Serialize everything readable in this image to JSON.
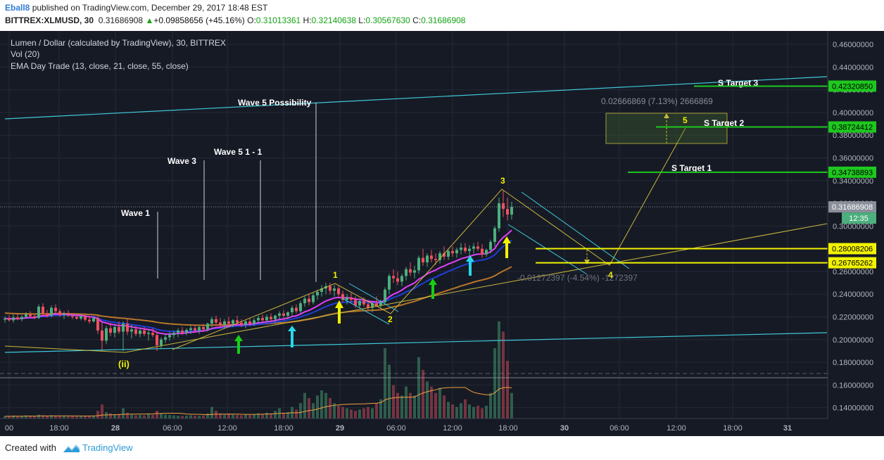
{
  "header": {
    "author": "Eball8",
    "published_text": "published on TradingView.com, December 29, 2017 18:48 EST",
    "symbol": "BITTREX:XLMUSD, 30",
    "price": "0.31686908",
    "up_arrow": "▲",
    "change": "+0.09858656 (+45.16%)",
    "o_label": "O:",
    "o_value": "0.31013361",
    "h_label": "H:",
    "h_value": "0.32140638",
    "l_label": "L:",
    "l_value": "0.30567630",
    "c_label": "C:",
    "c_value": "0.31686908"
  },
  "legend": {
    "line1": "Lumen / Dollar (calculated by TradingView), 30, BITTREX",
    "line2": "Vol (20)",
    "line3": "EMA Day Trade (13, close, 21, close, 55, close)"
  },
  "footer": {
    "created_with": "Created with",
    "brand": "TradingView"
  },
  "colors": {
    "background": "#161a25",
    "grid": "#242936",
    "up_candle": "#4caf7d",
    "down_candle": "#ef5061",
    "ema13": "#e040fb",
    "ema21": "#1e3fd8",
    "ema55": "#b8762a",
    "trend": "#3ec8d8",
    "elliott": "#c8b83a",
    "target_green": "#1ec81e",
    "level_yellow": "#f2f200"
  },
  "chart_data": {
    "type": "candlestick",
    "title": "Lumen / Dollar (calculated by TradingView), 30, BITTREX",
    "x_ticks": [
      "00",
      "18:00",
      "28",
      "06:00",
      "12:00",
      "18:00",
      "29",
      "06:00",
      "12:00",
      "18:00",
      "30",
      "06:00",
      "12:00",
      "18:00",
      "31"
    ],
    "y_ticks": [
      "0.14000000",
      "0.16000000",
      "0.18000000",
      "0.20000000",
      "0.22000000",
      "0.24000000",
      "0.26000000",
      "0.28000000",
      "0.30000000",
      "0.32000000",
      "0.34000000",
      "0.36000000",
      "0.38000000",
      "0.40000000",
      "0.42000000",
      "0.44000000",
      "0.46000000"
    ],
    "ylim": [
      0.1305,
      0.4718
    ],
    "last_price": 0.31686908,
    "countdown": "12:35",
    "price_labels": [
      {
        "value": 0.4232085,
        "text": "0.42320850",
        "kind": "green"
      },
      {
        "value": 0.38724412,
        "text": "0.38724412",
        "kind": "green"
      },
      {
        "value": 0.34738893,
        "text": "0.34738893",
        "kind": "green"
      },
      {
        "value": 0.31686908,
        "text": "0.31686908",
        "kind": "gray"
      },
      {
        "value": 0.28008206,
        "text": "0.28008206",
        "kind": "yellow"
      },
      {
        "value": 0.26765262,
        "text": "0.26765262",
        "kind": "yellow"
      }
    ],
    "targets": [
      {
        "label": "S Target 3",
        "value": 0.4232085
      },
      {
        "label": "S Target 2",
        "value": 0.38724412
      },
      {
        "label": "S Target 1",
        "value": 0.34738893
      }
    ],
    "wave_annotations": [
      "Wave 1",
      "Wave 3",
      "Wave 5 1 - 1",
      "Wave 5 Possibility"
    ],
    "elliott_labels": [
      "1",
      "2",
      "3",
      "4",
      "5",
      "(ii)"
    ],
    "measure_up": "0.02666869 (7.13%) 2666869",
    "measure_down": "-0.01272397 (-4.54%) -1272397",
    "candles": [
      {
        "t": 0,
        "o": 0.2175,
        "h": 0.2205,
        "l": 0.215,
        "c": 0.2185
      },
      {
        "t": 1,
        "o": 0.2185,
        "h": 0.2215,
        "l": 0.216,
        "c": 0.217
      },
      {
        "t": 2,
        "o": 0.217,
        "h": 0.222,
        "l": 0.215,
        "c": 0.2195
      },
      {
        "t": 3,
        "o": 0.2195,
        "h": 0.223,
        "l": 0.217,
        "c": 0.218
      },
      {
        "t": 4,
        "o": 0.218,
        "h": 0.2215,
        "l": 0.216,
        "c": 0.22
      },
      {
        "t": 5,
        "o": 0.22,
        "h": 0.224,
        "l": 0.2185,
        "c": 0.2225
      },
      {
        "t": 6,
        "o": 0.2225,
        "h": 0.225,
        "l": 0.2195,
        "c": 0.2205
      },
      {
        "t": 7,
        "o": 0.2205,
        "h": 0.223,
        "l": 0.218,
        "c": 0.219
      },
      {
        "t": 8,
        "o": 0.219,
        "h": 0.231,
        "l": 0.218,
        "c": 0.229
      },
      {
        "t": 9,
        "o": 0.229,
        "h": 0.232,
        "l": 0.221,
        "c": 0.223
      },
      {
        "t": 10,
        "o": 0.223,
        "h": 0.226,
        "l": 0.2195,
        "c": 0.221
      },
      {
        "t": 11,
        "o": 0.221,
        "h": 0.23,
        "l": 0.2195,
        "c": 0.228
      },
      {
        "t": 12,
        "o": 0.228,
        "h": 0.231,
        "l": 0.223,
        "c": 0.225
      },
      {
        "t": 13,
        "o": 0.225,
        "h": 0.227,
        "l": 0.22,
        "c": 0.2215
      },
      {
        "t": 14,
        "o": 0.2215,
        "h": 0.225,
        "l": 0.218,
        "c": 0.2225
      },
      {
        "t": 15,
        "o": 0.2225,
        "h": 0.226,
        "l": 0.22,
        "c": 0.221
      },
      {
        "t": 16,
        "o": 0.221,
        "h": 0.223,
        "l": 0.218,
        "c": 0.22
      },
      {
        "t": 17,
        "o": 0.22,
        "h": 0.222,
        "l": 0.2175,
        "c": 0.2185
      },
      {
        "t": 18,
        "o": 0.2185,
        "h": 0.222,
        "l": 0.217,
        "c": 0.2205
      },
      {
        "t": 19,
        "o": 0.2205,
        "h": 0.222,
        "l": 0.216,
        "c": 0.2175
      },
      {
        "t": 20,
        "o": 0.2175,
        "h": 0.22,
        "l": 0.214,
        "c": 0.216
      },
      {
        "t": 21,
        "o": 0.216,
        "h": 0.22,
        "l": 0.215,
        "c": 0.219
      },
      {
        "t": 22,
        "o": 0.219,
        "h": 0.221,
        "l": 0.205,
        "c": 0.208
      },
      {
        "t": 23,
        "o": 0.208,
        "h": 0.215,
        "l": 0.19,
        "c": 0.199
      },
      {
        "t": 24,
        "o": 0.199,
        "h": 0.212,
        "l": 0.196,
        "c": 0.21
      },
      {
        "t": 25,
        "o": 0.21,
        "h": 0.215,
        "l": 0.203,
        "c": 0.206
      },
      {
        "t": 26,
        "o": 0.206,
        "h": 0.213,
        "l": 0.202,
        "c": 0.211
      },
      {
        "t": 27,
        "o": 0.211,
        "h": 0.216,
        "l": 0.205,
        "c": 0.207
      },
      {
        "t": 28,
        "o": 0.207,
        "h": 0.216,
        "l": 0.19,
        "c": 0.214
      },
      {
        "t": 29,
        "o": 0.214,
        "h": 0.218,
        "l": 0.204,
        "c": 0.207
      },
      {
        "t": 30,
        "o": 0.207,
        "h": 0.213,
        "l": 0.201,
        "c": 0.209
      },
      {
        "t": 31,
        "o": 0.209,
        "h": 0.212,
        "l": 0.203,
        "c": 0.205
      },
      {
        "t": 32,
        "o": 0.205,
        "h": 0.21,
        "l": 0.202,
        "c": 0.208
      },
      {
        "t": 33,
        "o": 0.208,
        "h": 0.211,
        "l": 0.203,
        "c": 0.205
      },
      {
        "t": 34,
        "o": 0.205,
        "h": 0.209,
        "l": 0.199,
        "c": 0.206
      },
      {
        "t": 35,
        "o": 0.206,
        "h": 0.21,
        "l": 0.202,
        "c": 0.204
      },
      {
        "t": 36,
        "o": 0.204,
        "h": 0.207,
        "l": 0.19,
        "c": 0.195
      },
      {
        "t": 37,
        "o": 0.195,
        "h": 0.202,
        "l": 0.192,
        "c": 0.2
      },
      {
        "t": 38,
        "o": 0.2,
        "h": 0.205,
        "l": 0.197,
        "c": 0.202
      },
      {
        "t": 39,
        "o": 0.202,
        "h": 0.207,
        "l": 0.199,
        "c": 0.204
      },
      {
        "t": 40,
        "o": 0.204,
        "h": 0.208,
        "l": 0.201,
        "c": 0.206
      },
      {
        "t": 41,
        "o": 0.206,
        "h": 0.21,
        "l": 0.202,
        "c": 0.208
      },
      {
        "t": 42,
        "o": 0.208,
        "h": 0.211,
        "l": 0.204,
        "c": 0.206
      },
      {
        "t": 43,
        "o": 0.206,
        "h": 0.21,
        "l": 0.204,
        "c": 0.2085
      },
      {
        "t": 44,
        "o": 0.2085,
        "h": 0.212,
        "l": 0.205,
        "c": 0.21
      },
      {
        "t": 45,
        "o": 0.21,
        "h": 0.213,
        "l": 0.206,
        "c": 0.208
      },
      {
        "t": 46,
        "o": 0.208,
        "h": 0.212,
        "l": 0.205,
        "c": 0.211
      },
      {
        "t": 47,
        "o": 0.211,
        "h": 0.214,
        "l": 0.207,
        "c": 0.209
      },
      {
        "t": 48,
        "o": 0.209,
        "h": 0.215,
        "l": 0.207,
        "c": 0.214
      },
      {
        "t": 49,
        "o": 0.214,
        "h": 0.22,
        "l": 0.211,
        "c": 0.218
      },
      {
        "t": 50,
        "o": 0.218,
        "h": 0.221,
        "l": 0.212,
        "c": 0.215
      },
      {
        "t": 51,
        "o": 0.215,
        "h": 0.219,
        "l": 0.211,
        "c": 0.213
      },
      {
        "t": 52,
        "o": 0.213,
        "h": 0.218,
        "l": 0.21,
        "c": 0.216
      },
      {
        "t": 53,
        "o": 0.216,
        "h": 0.22,
        "l": 0.212,
        "c": 0.214
      },
      {
        "t": 54,
        "o": 0.214,
        "h": 0.218,
        "l": 0.211,
        "c": 0.217
      },
      {
        "t": 55,
        "o": 0.217,
        "h": 0.221,
        "l": 0.213,
        "c": 0.215
      },
      {
        "t": 56,
        "o": 0.215,
        "h": 0.218,
        "l": 0.211,
        "c": 0.213
      },
      {
        "t": 57,
        "o": 0.213,
        "h": 0.217,
        "l": 0.21,
        "c": 0.216
      },
      {
        "t": 58,
        "o": 0.216,
        "h": 0.219,
        "l": 0.212,
        "c": 0.214
      },
      {
        "t": 59,
        "o": 0.214,
        "h": 0.219,
        "l": 0.212,
        "c": 0.217
      },
      {
        "t": 60,
        "o": 0.217,
        "h": 0.221,
        "l": 0.214,
        "c": 0.219
      },
      {
        "t": 61,
        "o": 0.219,
        "h": 0.222,
        "l": 0.215,
        "c": 0.217
      },
      {
        "t": 62,
        "o": 0.217,
        "h": 0.222,
        "l": 0.215,
        "c": 0.22
      },
      {
        "t": 63,
        "o": 0.22,
        "h": 0.223,
        "l": 0.216,
        "c": 0.218
      },
      {
        "t": 64,
        "o": 0.218,
        "h": 0.222,
        "l": 0.215,
        "c": 0.221
      },
      {
        "t": 65,
        "o": 0.221,
        "h": 0.225,
        "l": 0.218,
        "c": 0.223
      },
      {
        "t": 66,
        "o": 0.223,
        "h": 0.226,
        "l": 0.219,
        "c": 0.221
      },
      {
        "t": 67,
        "o": 0.221,
        "h": 0.225,
        "l": 0.218,
        "c": 0.224
      },
      {
        "t": 68,
        "o": 0.224,
        "h": 0.23,
        "l": 0.221,
        "c": 0.228
      },
      {
        "t": 69,
        "o": 0.228,
        "h": 0.231,
        "l": 0.223,
        "c": 0.225
      },
      {
        "t": 70,
        "o": 0.225,
        "h": 0.234,
        "l": 0.223,
        "c": 0.232
      },
      {
        "t": 71,
        "o": 0.232,
        "h": 0.238,
        "l": 0.229,
        "c": 0.236
      },
      {
        "t": 72,
        "o": 0.236,
        "h": 0.24,
        "l": 0.23,
        "c": 0.233
      },
      {
        "t": 73,
        "o": 0.233,
        "h": 0.241,
        "l": 0.231,
        "c": 0.239
      },
      {
        "t": 74,
        "o": 0.239,
        "h": 0.244,
        "l": 0.235,
        "c": 0.242
      },
      {
        "t": 75,
        "o": 0.242,
        "h": 0.248,
        "l": 0.238,
        "c": 0.245
      },
      {
        "t": 76,
        "o": 0.245,
        "h": 0.25,
        "l": 0.24,
        "c": 0.247
      },
      {
        "t": 77,
        "o": 0.247,
        "h": 0.25,
        "l": 0.24,
        "c": 0.243
      },
      {
        "t": 78,
        "o": 0.243,
        "h": 0.248,
        "l": 0.238,
        "c": 0.245
      },
      {
        "t": 79,
        "o": 0.245,
        "h": 0.247,
        "l": 0.238,
        "c": 0.24
      },
      {
        "t": 80,
        "o": 0.24,
        "h": 0.243,
        "l": 0.233,
        "c": 0.235
      },
      {
        "t": 81,
        "o": 0.235,
        "h": 0.24,
        "l": 0.231,
        "c": 0.237
      },
      {
        "t": 82,
        "o": 0.237,
        "h": 0.241,
        "l": 0.233,
        "c": 0.235
      },
      {
        "t": 83,
        "o": 0.235,
        "h": 0.238,
        "l": 0.228,
        "c": 0.23
      },
      {
        "t": 84,
        "o": 0.23,
        "h": 0.236,
        "l": 0.228,
        "c": 0.234
      },
      {
        "t": 85,
        "o": 0.234,
        "h": 0.237,
        "l": 0.229,
        "c": 0.231
      },
      {
        "t": 86,
        "o": 0.231,
        "h": 0.235,
        "l": 0.226,
        "c": 0.228
      },
      {
        "t": 87,
        "o": 0.228,
        "h": 0.233,
        "l": 0.224,
        "c": 0.232
      },
      {
        "t": 88,
        "o": 0.232,
        "h": 0.238,
        "l": 0.229,
        "c": 0.23
      },
      {
        "t": 89,
        "o": 0.23,
        "h": 0.235,
        "l": 0.228,
        "c": 0.233
      },
      {
        "t": 90,
        "o": 0.233,
        "h": 0.246,
        "l": 0.231,
        "c": 0.244
      },
      {
        "t": 91,
        "o": 0.244,
        "h": 0.258,
        "l": 0.24,
        "c": 0.256
      },
      {
        "t": 92,
        "o": 0.256,
        "h": 0.262,
        "l": 0.25,
        "c": 0.254
      },
      {
        "t": 93,
        "o": 0.254,
        "h": 0.26,
        "l": 0.248,
        "c": 0.251
      },
      {
        "t": 94,
        "o": 0.251,
        "h": 0.258,
        "l": 0.247,
        "c": 0.256
      },
      {
        "t": 95,
        "o": 0.256,
        "h": 0.264,
        "l": 0.252,
        "c": 0.262
      },
      {
        "t": 96,
        "o": 0.262,
        "h": 0.268,
        "l": 0.256,
        "c": 0.259
      },
      {
        "t": 97,
        "o": 0.259,
        "h": 0.265,
        "l": 0.254,
        "c": 0.261
      },
      {
        "t": 98,
        "o": 0.261,
        "h": 0.274,
        "l": 0.258,
        "c": 0.272
      },
      {
        "t": 99,
        "o": 0.272,
        "h": 0.28,
        "l": 0.265,
        "c": 0.268
      },
      {
        "t": 100,
        "o": 0.268,
        "h": 0.276,
        "l": 0.264,
        "c": 0.274
      },
      {
        "t": 101,
        "o": 0.274,
        "h": 0.279,
        "l": 0.268,
        "c": 0.271
      },
      {
        "t": 102,
        "o": 0.271,
        "h": 0.276,
        "l": 0.266,
        "c": 0.27
      },
      {
        "t": 103,
        "o": 0.27,
        "h": 0.278,
        "l": 0.267,
        "c": 0.276
      },
      {
        "t": 104,
        "o": 0.276,
        "h": 0.282,
        "l": 0.27,
        "c": 0.273
      },
      {
        "t": 105,
        "o": 0.273,
        "h": 0.28,
        "l": 0.27,
        "c": 0.278
      },
      {
        "t": 106,
        "o": 0.278,
        "h": 0.282,
        "l": 0.273,
        "c": 0.276
      },
      {
        "t": 107,
        "o": 0.276,
        "h": 0.281,
        "l": 0.272,
        "c": 0.279
      },
      {
        "t": 108,
        "o": 0.279,
        "h": 0.285,
        "l": 0.275,
        "c": 0.281
      },
      {
        "t": 109,
        "o": 0.281,
        "h": 0.285,
        "l": 0.276,
        "c": 0.278
      },
      {
        "t": 110,
        "o": 0.278,
        "h": 0.283,
        "l": 0.274,
        "c": 0.28
      },
      {
        "t": 111,
        "o": 0.28,
        "h": 0.285,
        "l": 0.276,
        "c": 0.282
      },
      {
        "t": 112,
        "o": 0.282,
        "h": 0.286,
        "l": 0.278,
        "c": 0.28
      },
      {
        "t": 113,
        "o": 0.28,
        "h": 0.284,
        "l": 0.272,
        "c": 0.275
      },
      {
        "t": 114,
        "o": 0.275,
        "h": 0.28,
        "l": 0.273,
        "c": 0.279
      },
      {
        "t": 115,
        "o": 0.279,
        "h": 0.288,
        "l": 0.276,
        "c": 0.286
      },
      {
        "t": 116,
        "o": 0.286,
        "h": 0.3,
        "l": 0.282,
        "c": 0.298
      },
      {
        "t": 117,
        "o": 0.298,
        "h": 0.325,
        "l": 0.295,
        "c": 0.32
      },
      {
        "t": 118,
        "o": 0.32,
        "h": 0.3314,
        "l": 0.308,
        "c": 0.315
      },
      {
        "t": 119,
        "o": 0.315,
        "h": 0.325,
        "l": 0.305,
        "c": 0.3101
      },
      {
        "t": 120,
        "o": 0.3101,
        "h": 0.3214,
        "l": 0.3057,
        "c": 0.3169
      }
    ],
    "volume": {
      "ylim": [
        0,
        0.077
      ],
      "values": [
        0.0018,
        0.0016,
        0.0022,
        0.0015,
        0.002,
        0.0024,
        0.0018,
        0.0016,
        0.003,
        0.0024,
        0.002,
        0.0026,
        0.0022,
        0.0018,
        0.002,
        0.0016,
        0.0018,
        0.0015,
        0.0017,
        0.0016,
        0.002,
        0.0022,
        0.006,
        0.011,
        0.005,
        0.004,
        0.003,
        0.0035,
        0.008,
        0.0045,
        0.003,
        0.0025,
        0.0028,
        0.0025,
        0.0035,
        0.003,
        0.006,
        0.004,
        0.003,
        0.0028,
        0.0025,
        0.0022,
        0.002,
        0.0022,
        0.0025,
        0.0022,
        0.002,
        0.0024,
        0.004,
        0.009,
        0.006,
        0.004,
        0.003,
        0.0035,
        0.003,
        0.0028,
        0.0025,
        0.003,
        0.0028,
        0.003,
        0.004,
        0.0035,
        0.0045,
        0.004,
        0.006,
        0.008,
        0.004,
        0.005,
        0.009,
        0.007,
        0.012,
        0.02,
        0.016,
        0.012,
        0.018,
        0.022,
        0.02,
        0.016,
        0.012,
        0.01,
        0.009,
        0.008,
        0.007,
        0.006,
        0.007,
        0.008,
        0.009,
        0.008,
        0.012,
        0.015,
        0.055,
        0.042,
        0.026,
        0.02,
        0.018,
        0.025,
        0.02,
        0.018,
        0.048,
        0.038,
        0.029,
        0.025,
        0.02,
        0.024,
        0.018,
        0.013,
        0.011,
        0.009,
        0.012,
        0.015,
        0.011,
        0.009,
        0.01,
        0.008,
        0.01,
        0.02,
        0.055,
        0.076,
        0.068,
        0.045,
        0.02
      ]
    }
  }
}
